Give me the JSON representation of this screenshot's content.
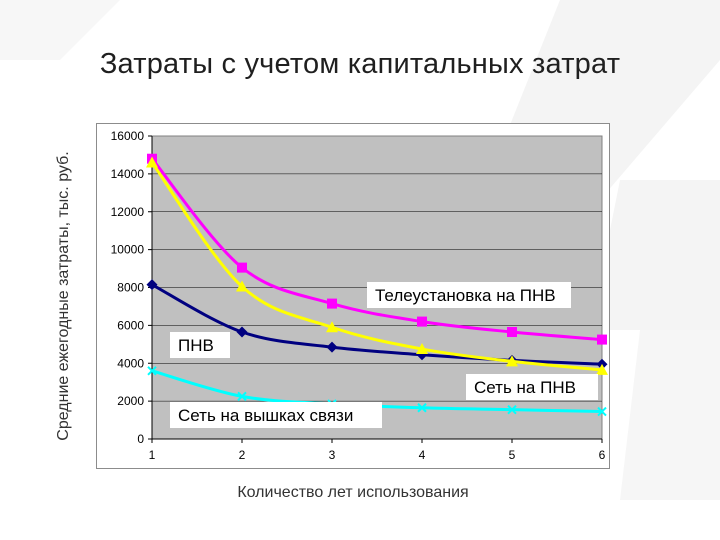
{
  "slide": {
    "title": "Затраты с учетом капитальных затрат"
  },
  "chart_data": {
    "type": "line",
    "xlabel": "Количество лет использования",
    "ylabel": "Средние ежегодные затраты, тыс. руб.",
    "x": [
      1,
      2,
      3,
      4,
      5,
      6
    ],
    "xlim": [
      1,
      6
    ],
    "ylim": [
      0,
      16000
    ],
    "yticks": [
      0,
      2000,
      4000,
      6000,
      8000,
      10000,
      12000,
      14000,
      16000
    ],
    "grid": true,
    "plot_background": "#c0c0c0",
    "series": [
      {
        "name": "Телеустановка на ПНВ",
        "color": "#ff00ff",
        "marker": "square",
        "values": [
          14800,
          9050,
          7150,
          6200,
          5650,
          5250
        ]
      },
      {
        "name": "ПНВ",
        "color": "#000080",
        "marker": "diamond",
        "values": [
          8150,
          5650,
          4850,
          4450,
          4150,
          3950
        ]
      },
      {
        "name": "Сеть на ПНВ",
        "color": "#ffff00",
        "marker": "triangle",
        "values": [
          14600,
          8050,
          5900,
          4750,
          4100,
          3650
        ]
      },
      {
        "name": "Сеть на вышках связи",
        "color": "#00ffff",
        "marker": "x",
        "values": [
          3600,
          2250,
          1850,
          1650,
          1550,
          1450
        ]
      }
    ]
  }
}
